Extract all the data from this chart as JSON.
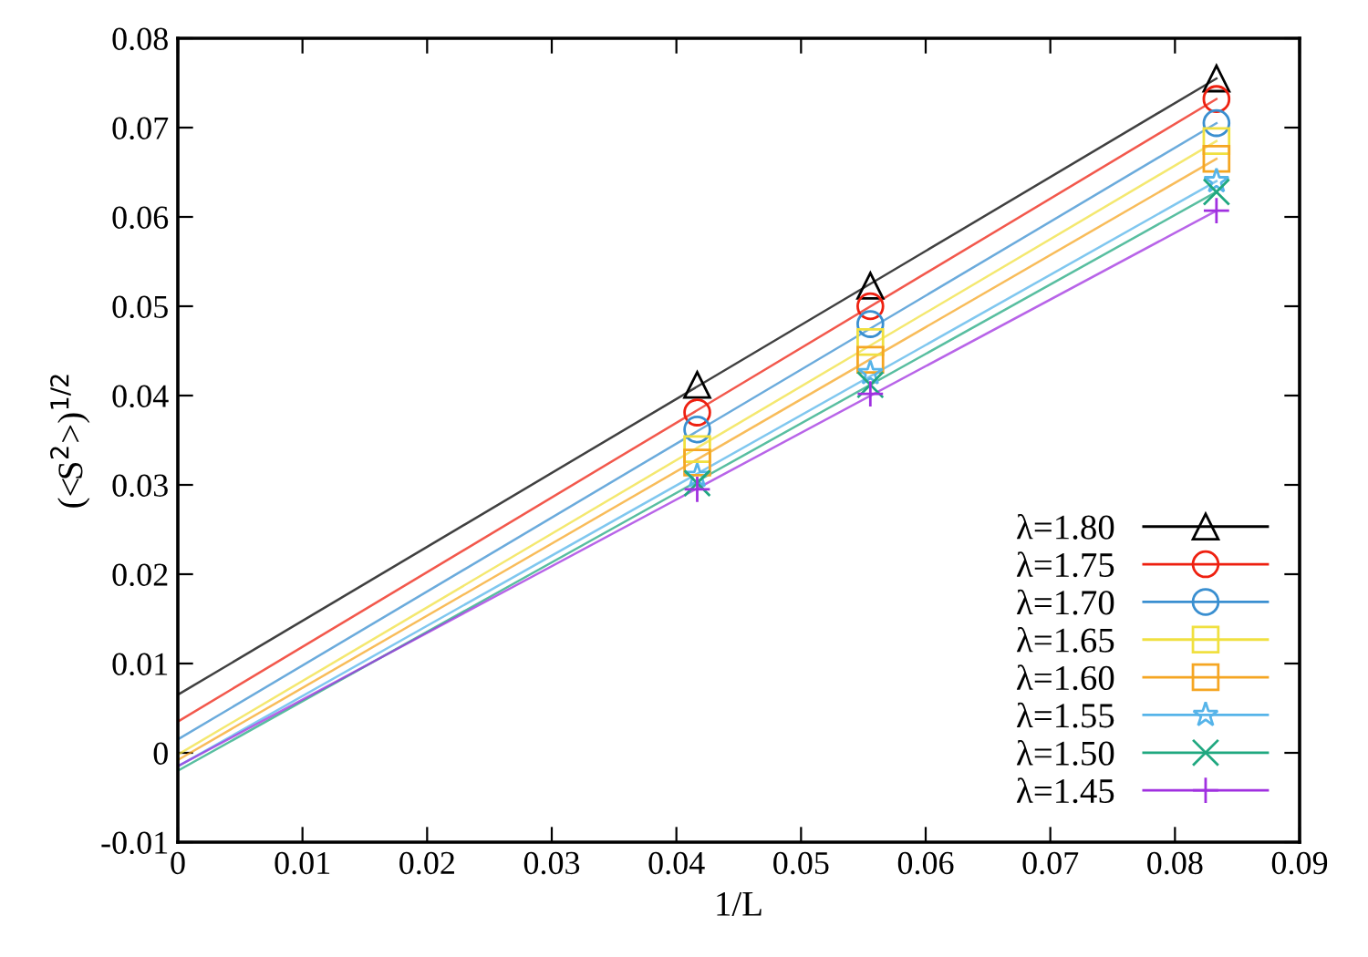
{
  "chart_data": {
    "type": "scatter",
    "xlabel": "1/L",
    "ylabel": "(<S$^{2}$>)$^{1/2}$",
    "xlim": [
      0,
      0.09
    ],
    "ylim": [
      -0.01,
      0.08
    ],
    "xticks": [
      0,
      0.01,
      0.02,
      0.03,
      0.04,
      0.05,
      0.06,
      0.07,
      0.08,
      0.09
    ],
    "yticks": [
      -0.01,
      0,
      0.01,
      0.02,
      0.03,
      0.04,
      0.05,
      0.06,
      0.07,
      0.08
    ],
    "grid": false,
    "legend": "bottom right",
    "series": [
      {
        "name": "λ=1.80",
        "color": "#000000",
        "marker": "triangle",
        "x": [
          0.04167,
          0.05556,
          0.08333
        ],
        "values": [
          0.0412,
          0.0523,
          0.0755
        ]
      },
      {
        "name": "λ=1.75",
        "color": "#ee2010",
        "marker": "circle",
        "x": [
          0.04167,
          0.05556,
          0.08333
        ],
        "values": [
          0.0381,
          0.05,
          0.0732
        ]
      },
      {
        "name": "λ=1.70",
        "color": "#3a8fd0",
        "marker": "circle",
        "x": [
          0.04167,
          0.05556,
          0.08333
        ],
        "values": [
          0.0362,
          0.048,
          0.0705
        ]
      },
      {
        "name": "λ=1.65",
        "color": "#f0e040",
        "marker": "square",
        "x": [
          0.04167,
          0.05556,
          0.08333
        ],
        "values": [
          0.034,
          0.046,
          0.0685
        ]
      },
      {
        "name": "λ=1.60",
        "color": "#f5a623",
        "marker": "square",
        "x": [
          0.04167,
          0.05556,
          0.08333
        ],
        "values": [
          0.0325,
          0.044,
          0.0665
        ]
      },
      {
        "name": "λ=1.55",
        "color": "#56b4e9",
        "marker": "star",
        "x": [
          0.04167,
          0.05556,
          0.08333
        ],
        "values": [
          0.031,
          0.0425,
          0.064
        ]
      },
      {
        "name": "λ=1.50",
        "color": "#20a880",
        "marker": "cross",
        "x": [
          0.04167,
          0.05556,
          0.08333
        ],
        "values": [
          0.0302,
          0.0412,
          0.0628
        ]
      },
      {
        "name": "λ=1.45",
        "color": "#a030e0",
        "marker": "plus",
        "x": [
          0.04167,
          0.05556,
          0.08333
        ],
        "values": [
          0.0295,
          0.0402,
          0.0607
        ]
      },
      {
        "type": "line",
        "color": "#000000",
        "x": [
          0,
          0.08333
        ],
        "values": [
          0.0065,
          0.0755
        ]
      },
      {
        "type": "line",
        "color": "#ee2010",
        "x": [
          0,
          0.08333
        ],
        "values": [
          0.0035,
          0.0732
        ]
      },
      {
        "type": "line",
        "color": "#3a8fd0",
        "x": [
          0,
          0.08333
        ],
        "values": [
          0.0015,
          0.0705
        ]
      },
      {
        "type": "line",
        "color": "#f0e040",
        "x": [
          0,
          0.08333
        ],
        "values": [
          -0.0002,
          0.0685
        ]
      },
      {
        "type": "line",
        "color": "#f5a623",
        "x": [
          0,
          0.08333
        ],
        "values": [
          -0.0008,
          0.0665
        ]
      },
      {
        "type": "line",
        "color": "#56b4e9",
        "x": [
          0,
          0.08333
        ],
        "values": [
          -0.0015,
          0.064
        ]
      },
      {
        "type": "line",
        "color": "#20a880",
        "x": [
          0,
          0.08333
        ],
        "values": [
          -0.002,
          0.0628
        ]
      },
      {
        "type": "line",
        "color": "#a030e0",
        "x": [
          0,
          0.08333
        ],
        "values": [
          -0.0015,
          0.0607
        ]
      }
    ]
  }
}
